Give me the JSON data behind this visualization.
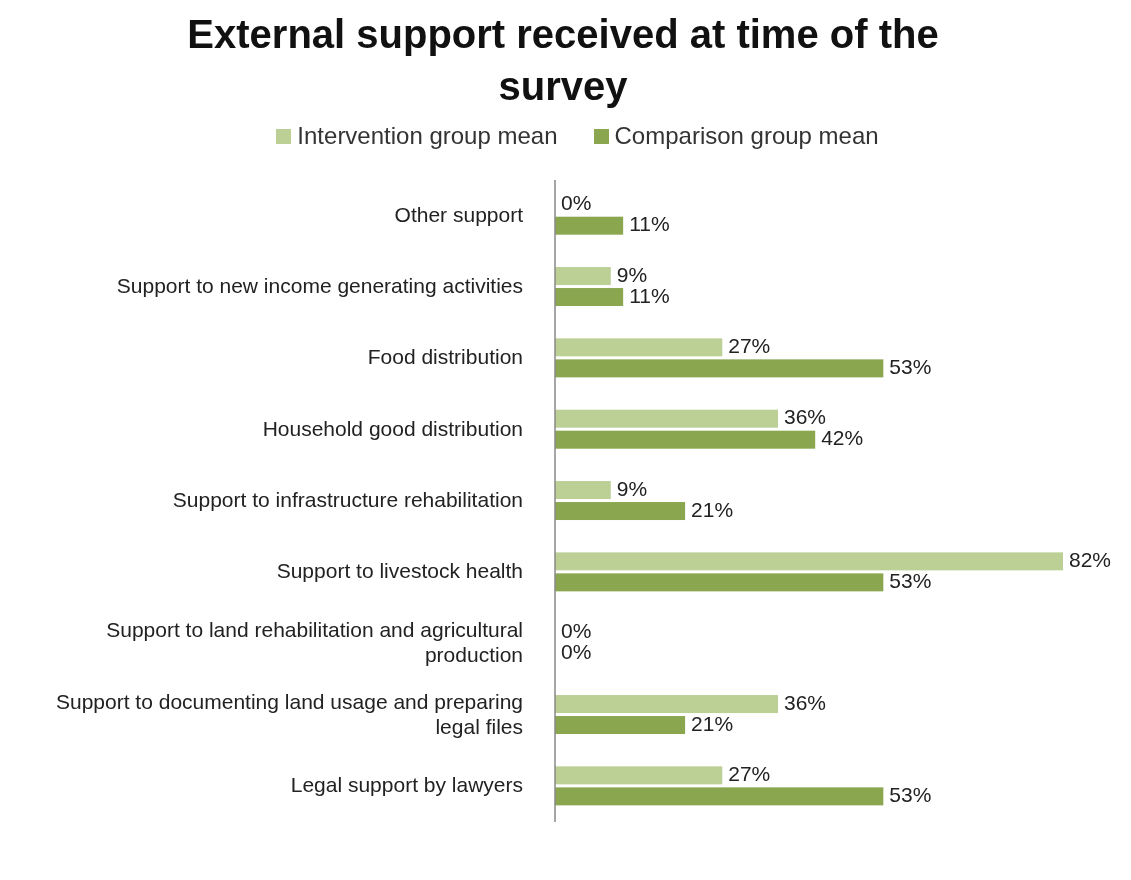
{
  "chart_data": {
    "type": "bar",
    "orientation": "horizontal",
    "title": "External support received at time of the survey",
    "categories": [
      "Other support",
      "Support to new income generating activities",
      "Food distribution",
      "Household good distribution",
      "Support to infrastructure rehabilitation",
      "Support to livestock health",
      "Support to land rehabilitation and agricultural production",
      "Support to documenting land usage and preparing legal files",
      "Legal support by lawyers"
    ],
    "series": [
      {
        "name": "Intervention group mean",
        "color": "#bcd096",
        "values": [
          0,
          9,
          27,
          36,
          9,
          82,
          0,
          36,
          27
        ],
        "value_labels": [
          "0%",
          "9%",
          "27%",
          "36%",
          "9%",
          "82%",
          "0%",
          "36%",
          "27%"
        ]
      },
      {
        "name": "Comparison group mean",
        "color": "#8aa74f",
        "values": [
          11,
          11,
          53,
          42,
          21,
          53,
          0,
          21,
          53
        ],
        "value_labels": [
          "11%",
          "11%",
          "53%",
          "42%",
          "21%",
          "53%",
          "0%",
          "21%",
          "53%"
        ]
      }
    ],
    "legend": "top"
  }
}
